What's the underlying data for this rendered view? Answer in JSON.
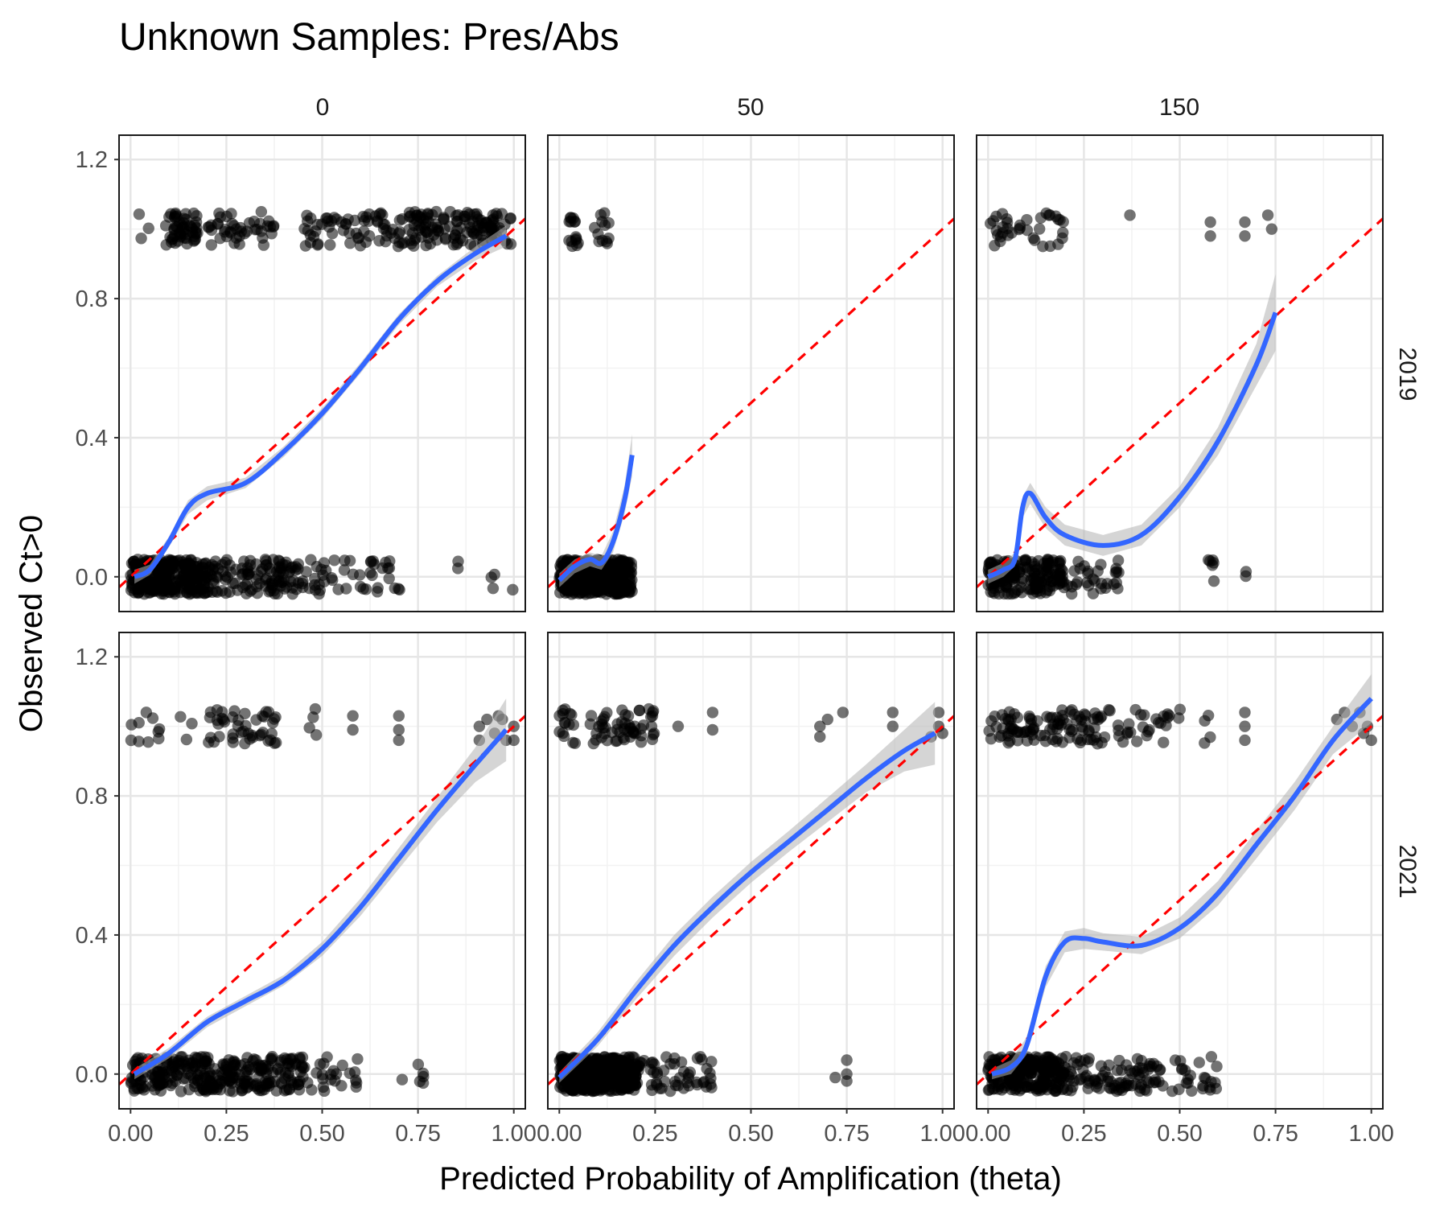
{
  "colors": {
    "background": "#ffffff",
    "grid_major": "#e6e6e6",
    "grid_minor": "#f2f2f2",
    "panel_border": "#1a1a1a",
    "points": "#000000",
    "smooth_line": "#3366ff",
    "confidence_band": "#b3b3b3",
    "reference_line": "#ff0000"
  },
  "chart_data": {
    "type": "scatter",
    "title": "Unknown Samples: Pres/Abs",
    "xlabel": "Predicted Probability of Amplification (theta)",
    "ylabel": "Observed Ct>0",
    "xlim": [
      -0.03,
      1.03
    ],
    "ylim": [
      -0.1,
      1.27
    ],
    "x_ticks": [
      0,
      0.25,
      0.5,
      0.75,
      1
    ],
    "x_tick_labels": [
      "0.00",
      "0.25",
      "0.50",
      "0.75",
      "1.00"
    ],
    "y_ticks": [
      0,
      0.4,
      0.8,
      1.2
    ],
    "y_tick_labels": [
      "0.0",
      "0.4",
      "0.8",
      "1.2"
    ],
    "grid": true,
    "facet_cols": [
      "0",
      "50",
      "150"
    ],
    "facet_rows": [
      "2019",
      "2021"
    ],
    "reference_line": {
      "slope": 1,
      "intercept": 0,
      "style": "dashed"
    },
    "panels": [
      {
        "col": "0",
        "row": "2019",
        "present_clusters": [
          [
            0.0,
            1.0,
            20
          ],
          [
            0.1,
            0.18,
            50
          ],
          [
            0.2,
            0.38,
            40
          ],
          [
            0.45,
            0.7,
            55
          ],
          [
            0.7,
            1.0,
            130
          ]
        ],
        "absent_clusters": [
          [
            0.0,
            0.2,
            300
          ],
          [
            0.2,
            0.45,
            120
          ],
          [
            0.45,
            0.72,
            45
          ],
          [
            0.85,
            0.86,
            2
          ],
          [
            0.94,
            0.95,
            3
          ],
          [
            0.99,
            1.0,
            1
          ]
        ],
        "smooth": [
          [
            0.01,
            0.0
          ],
          [
            0.05,
            0.02
          ],
          [
            0.1,
            0.1
          ],
          [
            0.15,
            0.2
          ],
          [
            0.2,
            0.24
          ],
          [
            0.3,
            0.27
          ],
          [
            0.4,
            0.36
          ],
          [
            0.5,
            0.47
          ],
          [
            0.6,
            0.6
          ],
          [
            0.7,
            0.74
          ],
          [
            0.8,
            0.85
          ],
          [
            0.9,
            0.93
          ],
          [
            0.98,
            0.98
          ]
        ],
        "band": [
          0.02,
          0.015,
          0.015,
          0.02,
          0.02,
          0.015,
          0.015,
          0.015,
          0.015,
          0.015,
          0.015,
          0.02,
          0.03
        ]
      },
      {
        "col": "50",
        "row": "2019",
        "present_clusters": [
          [
            0.02,
            0.05,
            15
          ],
          [
            0.09,
            0.13,
            12
          ]
        ],
        "absent_clusters": [
          [
            0.0,
            0.19,
            400
          ]
        ],
        "smooth": [
          [
            0.0,
            -0.01
          ],
          [
            0.04,
            0.03
          ],
          [
            0.08,
            0.05
          ],
          [
            0.11,
            0.04
          ],
          [
            0.14,
            0.1
          ],
          [
            0.17,
            0.22
          ],
          [
            0.19,
            0.35
          ]
        ],
        "band": [
          0.02,
          0.02,
          0.02,
          0.02,
          0.03,
          0.04,
          0.06
        ]
      },
      {
        "col": "150",
        "row": "2019",
        "present_clusters": [
          [
            0.0,
            0.05,
            12
          ],
          [
            0.05,
            0.2,
            25
          ]
        ],
        "absent_clusters": [
          [
            0.0,
            0.2,
            180
          ],
          [
            0.2,
            0.35,
            30
          ],
          [
            0.57,
            0.59,
            6
          ],
          [
            0.67,
            0.68,
            2
          ]
        ],
        "present_points": [
          [
            0.37,
            1.04
          ],
          [
            0.58,
            1.02
          ],
          [
            0.58,
            0.98
          ],
          [
            0.67,
            1.02
          ],
          [
            0.67,
            0.98
          ],
          [
            0.73,
            1.04
          ],
          [
            0.74,
            1.0
          ]
        ],
        "smooth": [
          [
            0.0,
            0.0
          ],
          [
            0.04,
            0.02
          ],
          [
            0.07,
            0.05
          ],
          [
            0.09,
            0.2
          ],
          [
            0.11,
            0.24
          ],
          [
            0.15,
            0.17
          ],
          [
            0.2,
            0.12
          ],
          [
            0.3,
            0.09
          ],
          [
            0.4,
            0.12
          ],
          [
            0.5,
            0.23
          ],
          [
            0.6,
            0.39
          ],
          [
            0.7,
            0.61
          ],
          [
            0.75,
            0.76
          ]
        ],
        "band": [
          0.02,
          0.02,
          0.02,
          0.03,
          0.03,
          0.03,
          0.03,
          0.03,
          0.03,
          0.03,
          0.04,
          0.06,
          0.11
        ]
      },
      {
        "col": "0",
        "row": "2021",
        "present_clusters": [
          [
            0.0,
            0.08,
            10
          ],
          [
            0.12,
            0.16,
            3
          ],
          [
            0.2,
            0.38,
            45
          ],
          [
            0.45,
            0.5,
            4
          ]
        ],
        "absent_clusters": [
          [
            0.0,
            0.2,
            140
          ],
          [
            0.2,
            0.45,
            160
          ],
          [
            0.45,
            0.6,
            25
          ],
          [
            0.7,
            0.78,
            6
          ]
        ],
        "present_points": [
          [
            0.58,
            1.03
          ],
          [
            0.58,
            0.99
          ],
          [
            0.7,
            1.03
          ],
          [
            0.7,
            0.99
          ],
          [
            0.7,
            0.96
          ],
          [
            0.91,
            1.0
          ],
          [
            0.91,
            0.96
          ],
          [
            0.93,
            1.02
          ],
          [
            0.95,
            0.98
          ],
          [
            0.97,
            1.02
          ],
          [
            0.98,
            0.96
          ],
          [
            1.0,
            1.0
          ],
          [
            1.0,
            0.96
          ],
          [
            0.96,
            1.03
          ]
        ],
        "smooth": [
          [
            0.01,
            0.0
          ],
          [
            0.1,
            0.06
          ],
          [
            0.2,
            0.15
          ],
          [
            0.3,
            0.21
          ],
          [
            0.4,
            0.27
          ],
          [
            0.5,
            0.36
          ],
          [
            0.6,
            0.48
          ],
          [
            0.7,
            0.62
          ],
          [
            0.8,
            0.76
          ],
          [
            0.9,
            0.89
          ],
          [
            0.98,
            0.99
          ]
        ],
        "band": [
          0.015,
          0.015,
          0.015,
          0.015,
          0.015,
          0.02,
          0.025,
          0.03,
          0.035,
          0.05,
          0.09
        ]
      },
      {
        "col": "50",
        "row": "2021",
        "present_clusters": [
          [
            0.0,
            0.05,
            15
          ],
          [
            0.08,
            0.25,
            55
          ]
        ],
        "absent_clusters": [
          [
            0.0,
            0.2,
            420
          ],
          [
            0.2,
            0.4,
            55
          ]
        ],
        "present_points": [
          [
            0.31,
            1.0
          ],
          [
            0.4,
            1.04
          ],
          [
            0.4,
            0.99
          ],
          [
            0.68,
            1.0
          ],
          [
            0.68,
            0.97
          ],
          [
            0.7,
            1.02
          ],
          [
            0.74,
            1.04
          ],
          [
            0.87,
            1.04
          ],
          [
            0.87,
            1.0
          ],
          [
            0.97,
            0.97
          ],
          [
            0.99,
            1.04
          ],
          [
            0.99,
            1.0
          ],
          [
            1.0,
            0.98
          ]
        ],
        "absent_points": [
          [
            0.72,
            -0.01
          ],
          [
            0.75,
            0.04
          ],
          [
            0.75,
            0.0
          ],
          [
            0.75,
            -0.02
          ]
        ],
        "smooth": [
          [
            0.0,
            -0.01
          ],
          [
            0.1,
            0.1
          ],
          [
            0.2,
            0.24
          ],
          [
            0.3,
            0.37
          ],
          [
            0.4,
            0.48
          ],
          [
            0.5,
            0.58
          ],
          [
            0.6,
            0.67
          ],
          [
            0.7,
            0.76
          ],
          [
            0.8,
            0.85
          ],
          [
            0.9,
            0.93
          ],
          [
            0.98,
            0.98
          ]
        ],
        "band": [
          0.015,
          0.02,
          0.025,
          0.03,
          0.03,
          0.03,
          0.03,
          0.035,
          0.04,
          0.06,
          0.09
        ]
      },
      {
        "col": "150",
        "row": "2021",
        "present_clusters": [
          [
            0.0,
            0.05,
            10
          ],
          [
            0.05,
            0.3,
            90
          ],
          [
            0.3,
            0.52,
            30
          ],
          [
            0.56,
            0.58,
            4
          ]
        ],
        "absent_clusters": [
          [
            0.0,
            0.2,
            250
          ],
          [
            0.2,
            0.45,
            90
          ],
          [
            0.45,
            0.6,
            25
          ]
        ],
        "present_points": [
          [
            0.67,
            1.04
          ],
          [
            0.67,
            1.0
          ],
          [
            0.67,
            0.96
          ],
          [
            0.91,
            1.02
          ],
          [
            0.95,
            1.0
          ],
          [
            0.97,
            1.04
          ],
          [
            0.99,
            1.0
          ],
          [
            1.0,
            0.96
          ],
          [
            0.93,
            1.04
          ],
          [
            0.98,
            0.98
          ]
        ],
        "smooth": [
          [
            0.01,
            0.0
          ],
          [
            0.06,
            0.02
          ],
          [
            0.1,
            0.08
          ],
          [
            0.15,
            0.28
          ],
          [
            0.2,
            0.38
          ],
          [
            0.25,
            0.39
          ],
          [
            0.3,
            0.38
          ],
          [
            0.4,
            0.37
          ],
          [
            0.5,
            0.42
          ],
          [
            0.6,
            0.52
          ],
          [
            0.7,
            0.66
          ],
          [
            0.8,
            0.8
          ],
          [
            0.9,
            0.96
          ],
          [
            1.0,
            1.08
          ]
        ],
        "band": [
          0.015,
          0.02,
          0.025,
          0.03,
          0.03,
          0.03,
          0.025,
          0.025,
          0.03,
          0.035,
          0.04,
          0.04,
          0.04,
          0.07
        ]
      }
    ]
  }
}
